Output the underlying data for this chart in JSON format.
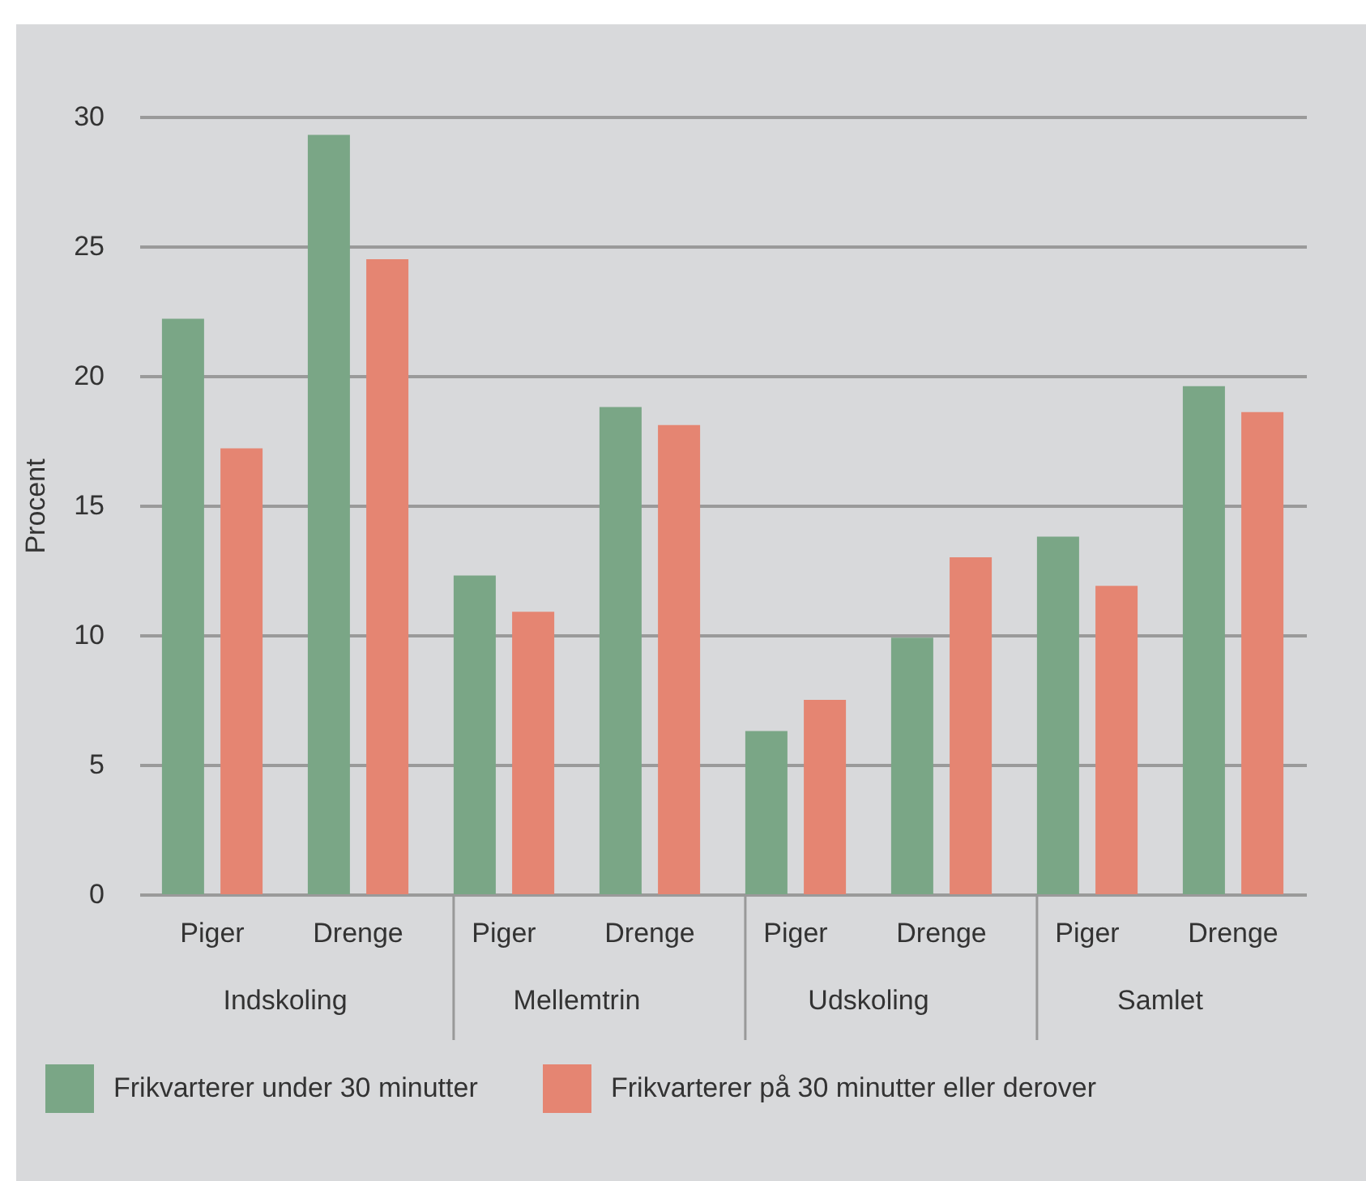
{
  "chart_data": {
    "type": "bar",
    "ylabel": "Procent",
    "categories": [
      "Piger",
      "Drenge",
      "Piger",
      "Drenge",
      "Piger",
      "Drenge",
      "Piger",
      "Drenge"
    ],
    "annotations": [
      "Indskoling",
      "Mellemtrin",
      "Udskoling",
      "Samlet"
    ],
    "series": [
      {
        "name": "Frikvarterer under 30 minutter",
        "color": "#7aa686",
        "values": [
          22.2,
          29.3,
          12.3,
          18.8,
          6.3,
          9.9,
          13.8,
          19.6
        ]
      },
      {
        "name": "Frikvarterer på 30 minutter eller derover",
        "color": "#e58572",
        "values": [
          17.2,
          24.5,
          10.9,
          18.1,
          7.5,
          13.0,
          11.9,
          18.6
        ]
      }
    ],
    "ylim": [
      0,
      30
    ],
    "yticks": [
      0,
      5,
      10,
      15,
      20,
      25,
      30
    ],
    "grid": "y",
    "legend": "bottom"
  }
}
